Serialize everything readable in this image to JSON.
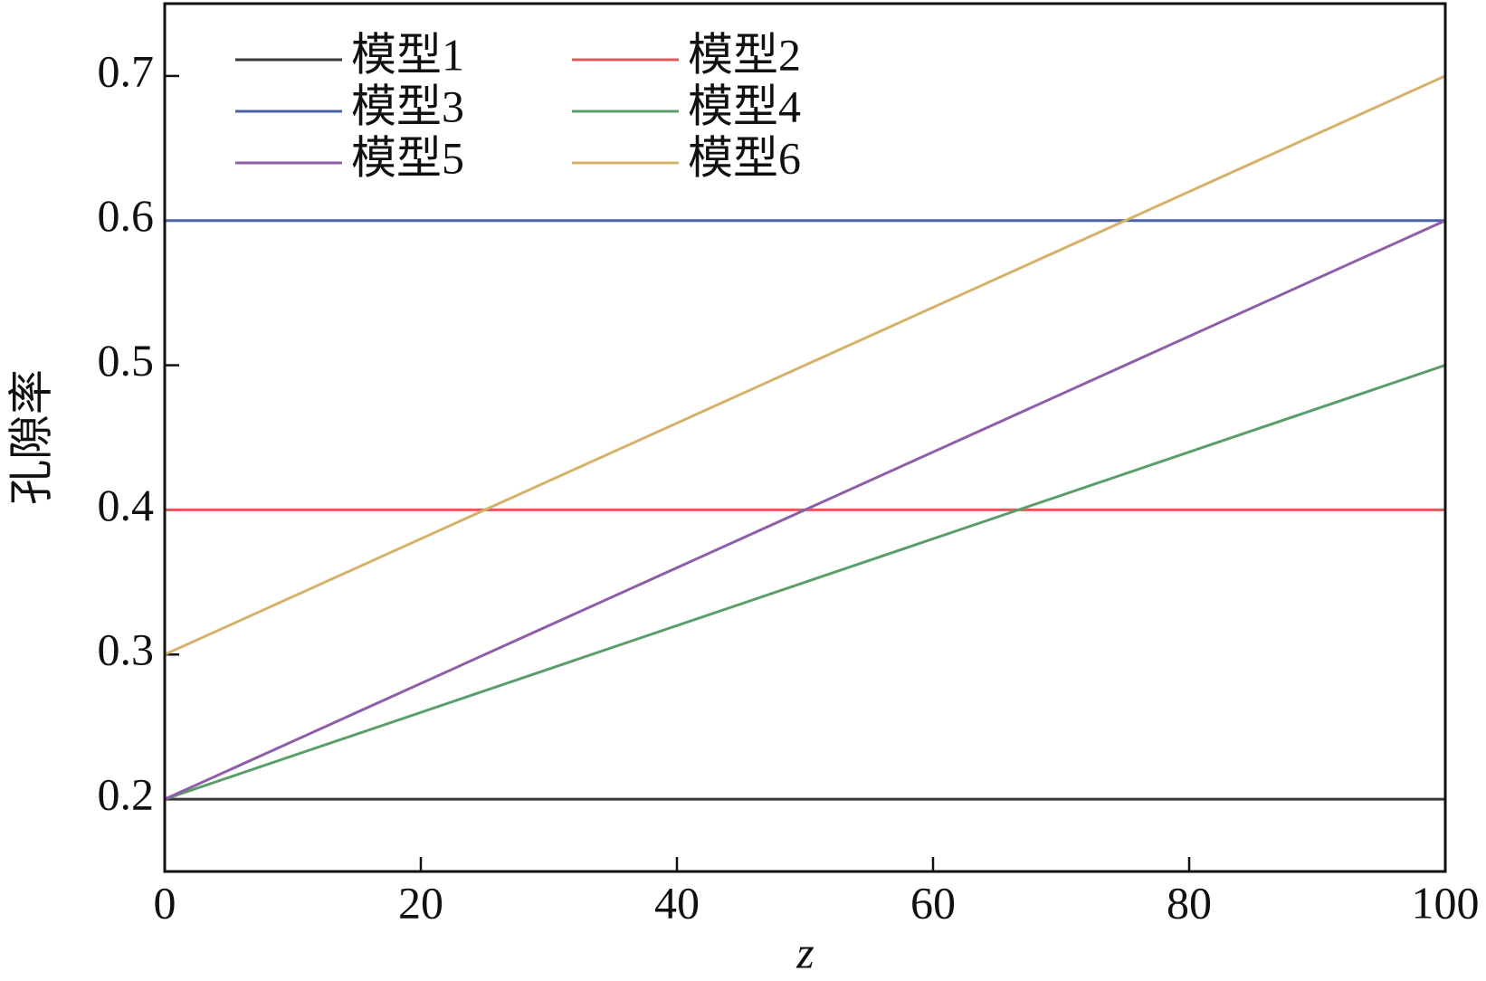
{
  "chart_data": {
    "type": "line",
    "x_label": "z",
    "y_label": "孔隙率",
    "x": [
      0,
      100
    ],
    "series": [
      {
        "name": "模型1",
        "color": "#3a3a3a",
        "values": [
          0.2,
          0.2
        ]
      },
      {
        "name": "模型2",
        "color": "#e05a5a",
        "values": [
          0.4,
          0.4
        ]
      },
      {
        "name": "模型3",
        "color": "#4a62a4",
        "values": [
          0.6,
          0.6
        ]
      },
      {
        "name": "模型4",
        "color": "#5a9e6a",
        "values": [
          0.2,
          0.5
        ]
      },
      {
        "name": "模型5",
        "color": "#8e5ea8",
        "values": [
          0.2,
          0.6
        ]
      },
      {
        "name": "模型6",
        "color": "#d6b16a",
        "values": [
          0.3,
          0.7
        ]
      }
    ],
    "xlim": [
      0,
      100
    ],
    "xticks": [
      0,
      20,
      40,
      60,
      80,
      100
    ],
    "ylim": [
      0.15,
      0.75
    ],
    "yticks": [
      0.2,
      0.3,
      0.4,
      0.5,
      0.6,
      0.7
    ],
    "legend": "upper left",
    "grid": false
  }
}
